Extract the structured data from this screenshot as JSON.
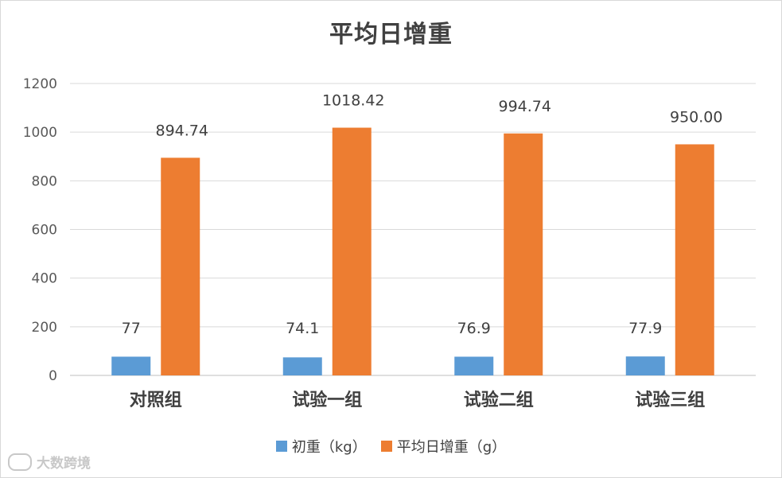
{
  "chart_data": {
    "type": "bar",
    "title": "平均日增重",
    "categories": [
      "对照组",
      "试验一组",
      "试验二组",
      "试验三组"
    ],
    "series": [
      {
        "name": "初重（kg）",
        "color": "#5b9bd5",
        "values": [
          77,
          74.1,
          76.9,
          77.9
        ],
        "labels": [
          "77",
          "74.1",
          "76.9",
          "77.9"
        ]
      },
      {
        "name": "平均日增重（g）",
        "color": "#ed7d31",
        "values": [
          894.74,
          1018.42,
          994.74,
          950.0
        ],
        "labels": [
          "894.74",
          "1018.42",
          "994.74",
          "950.00"
        ]
      }
    ],
    "ylim": [
      0,
      1200
    ],
    "yticks": [
      "0",
      "200",
      "400",
      "600",
      "800",
      "1000",
      "1200"
    ],
    "grid": true,
    "legend_position": "bottom"
  },
  "watermark": {
    "text": "大数跨境"
  }
}
